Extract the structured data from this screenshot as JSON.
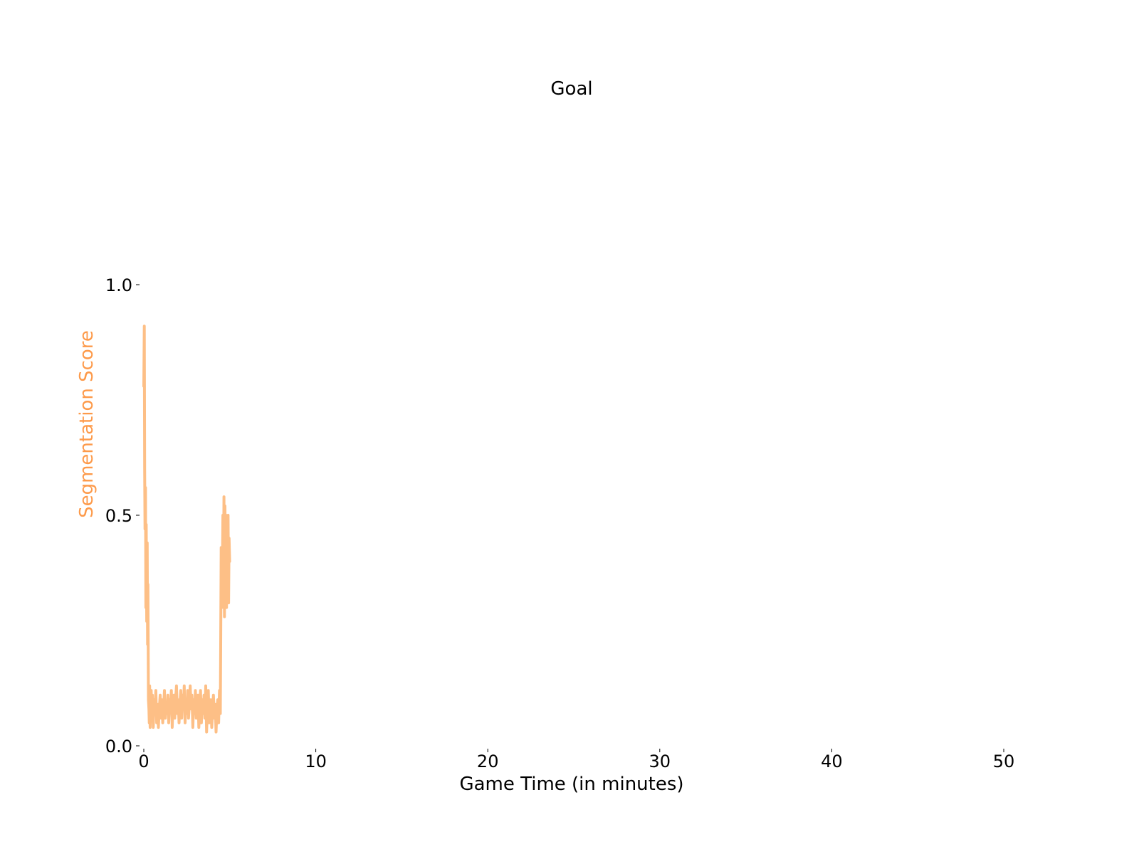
{
  "chart_data": {
    "type": "line",
    "title": "Goal",
    "xlabel": "Game Time (in minutes)",
    "ylabel": "Segmentation Score",
    "xlim": [
      0,
      50
    ],
    "ylim": [
      0.0,
      1.0
    ],
    "x_ticks": [
      0,
      10,
      20,
      30,
      40,
      50
    ],
    "x_tick_labels": [
      "0",
      "10",
      "20",
      "30",
      "40",
      "50"
    ],
    "y_ticks": [
      0.0,
      0.5,
      1.0
    ],
    "y_tick_labels": [
      "0.0",
      "0.5",
      "1.0"
    ],
    "grid": false,
    "colors": {
      "series": "#fdbf86",
      "ylabel": "#fd9a4a"
    },
    "series": [
      {
        "x": [
          0.0,
          0.03,
          0.05,
          0.07,
          0.1,
          0.12,
          0.14,
          0.17,
          0.2,
          0.22,
          0.24,
          0.27,
          0.3,
          0.32,
          0.34,
          0.37,
          0.4,
          0.43,
          0.46,
          0.5,
          0.55,
          0.6,
          0.65,
          0.7,
          0.75,
          0.8,
          0.85,
          0.9,
          0.95,
          1.0,
          1.05,
          1.1,
          1.15,
          1.2,
          1.25,
          1.3,
          1.35,
          1.4,
          1.45,
          1.5,
          1.55,
          1.6,
          1.65,
          1.7,
          1.75,
          1.8,
          1.85,
          1.9,
          1.95,
          2.0,
          2.05,
          2.1,
          2.15,
          2.2,
          2.25,
          2.3,
          2.35,
          2.4,
          2.45,
          2.5,
          2.55,
          2.6,
          2.65,
          2.7,
          2.75,
          2.8,
          2.85,
          2.9,
          2.95,
          3.0,
          3.05,
          3.1,
          3.15,
          3.2,
          3.25,
          3.3,
          3.35,
          3.4,
          3.45,
          3.5,
          3.55,
          3.6,
          3.65,
          3.7,
          3.75,
          3.8,
          3.85,
          3.9,
          3.95,
          4.0,
          4.05,
          4.1,
          4.15,
          4.2,
          4.25,
          4.3,
          4.35,
          4.4,
          4.45,
          4.5,
          4.55,
          4.6,
          4.63,
          4.66,
          4.69,
          4.72,
          4.75,
          4.78,
          4.81,
          4.84,
          4.87,
          4.9,
          4.93,
          4.96,
          4.99
        ],
        "y": [
          0.78,
          0.91,
          0.6,
          0.47,
          0.56,
          0.3,
          0.48,
          0.27,
          0.44,
          0.22,
          0.35,
          0.1,
          0.08,
          0.05,
          0.13,
          0.04,
          0.09,
          0.12,
          0.06,
          0.11,
          0.04,
          0.1,
          0.07,
          0.12,
          0.05,
          0.09,
          0.04,
          0.08,
          0.11,
          0.06,
          0.1,
          0.05,
          0.08,
          0.12,
          0.06,
          0.09,
          0.07,
          0.11,
          0.05,
          0.1,
          0.08,
          0.12,
          0.04,
          0.09,
          0.11,
          0.06,
          0.1,
          0.13,
          0.07,
          0.1,
          0.05,
          0.09,
          0.12,
          0.06,
          0.11,
          0.08,
          0.13,
          0.05,
          0.1,
          0.07,
          0.12,
          0.06,
          0.09,
          0.13,
          0.08,
          0.11,
          0.04,
          0.1,
          0.07,
          0.12,
          0.06,
          0.09,
          0.11,
          0.04,
          0.08,
          0.12,
          0.05,
          0.1,
          0.07,
          0.11,
          0.06,
          0.13,
          0.03,
          0.09,
          0.12,
          0.05,
          0.08,
          0.1,
          0.04,
          0.07,
          0.11,
          0.06,
          0.09,
          0.03,
          0.08,
          0.1,
          0.05,
          0.12,
          0.07,
          0.43,
          0.3,
          0.5,
          0.35,
          0.54,
          0.28,
          0.52,
          0.38,
          0.5,
          0.3,
          0.47,
          0.33,
          0.5,
          0.31,
          0.45,
          0.4
        ]
      }
    ]
  }
}
